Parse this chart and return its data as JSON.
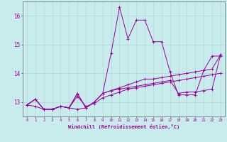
{
  "xlabel": "Windchill (Refroidissement éolien,°C)",
  "background_color": "#c8ecec",
  "grid_color": "#b0d8d8",
  "line_color": "#990099",
  "spine_color": "#666666",
  "x_ticks": [
    0,
    1,
    2,
    3,
    4,
    5,
    6,
    7,
    8,
    9,
    10,
    11,
    12,
    13,
    14,
    15,
    16,
    17,
    18,
    19,
    20,
    21,
    22,
    23
  ],
  "ylim": [
    12.5,
    16.5
  ],
  "xlim": [
    -0.5,
    23.5
  ],
  "yticks": [
    13,
    14,
    15,
    16
  ],
  "series": [
    [
      12.9,
      12.85,
      12.75,
      12.75,
      12.85,
      12.8,
      12.75,
      12.8,
      13.0,
      13.3,
      14.7,
      16.3,
      15.2,
      15.85,
      15.85,
      15.1,
      15.1,
      14.05,
      13.25,
      13.25,
      13.25,
      14.1,
      14.6,
      14.6
    ],
    [
      12.9,
      13.1,
      12.75,
      12.75,
      12.85,
      12.8,
      13.3,
      12.8,
      13.0,
      13.3,
      13.4,
      13.45,
      13.5,
      13.55,
      13.6,
      13.65,
      13.7,
      13.75,
      13.3,
      13.35,
      13.35,
      13.4,
      13.45,
      14.65
    ],
    [
      12.9,
      13.1,
      12.75,
      12.75,
      12.85,
      12.8,
      13.3,
      12.8,
      13.0,
      13.3,
      13.4,
      13.5,
      13.6,
      13.7,
      13.8,
      13.8,
      13.85,
      13.9,
      13.95,
      14.0,
      14.05,
      14.1,
      14.15,
      14.65
    ],
    [
      12.9,
      13.1,
      12.75,
      12.75,
      12.85,
      12.8,
      13.2,
      12.85,
      12.95,
      13.15,
      13.25,
      13.35,
      13.45,
      13.5,
      13.55,
      13.6,
      13.65,
      13.7,
      13.75,
      13.8,
      13.85,
      13.9,
      13.95,
      14.0
    ]
  ]
}
